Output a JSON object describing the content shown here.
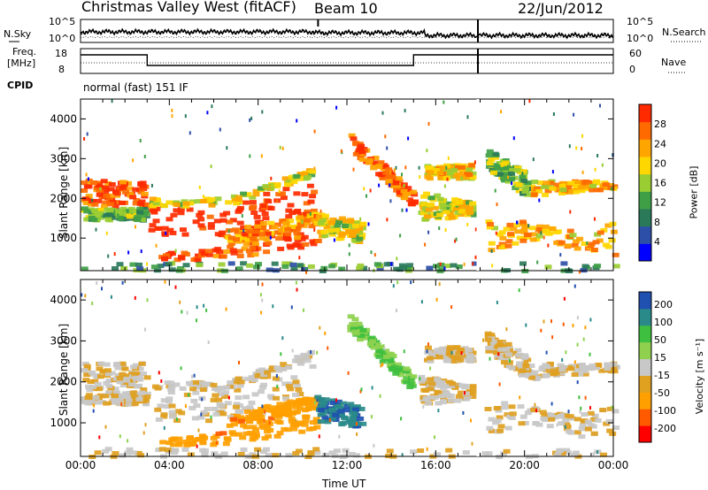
{
  "header": {
    "station": "Christmas Valley West (fitACF)",
    "beam": "Beam 10",
    "date": "22/Jun/2012"
  },
  "top_panels": {
    "nsky_label": "N.Sky",
    "nsky_ticks": [
      "10^5",
      "10^0"
    ],
    "nsearch_label": "N.Search",
    "nsearch_ticks": [
      "10^5",
      "10^0"
    ],
    "freq_label_line1": "Freq.",
    "freq_label_line2": "[MHz]",
    "freq_ticks": [
      "18",
      "8"
    ],
    "nave_label": "Nave",
    "nave_ticks": [
      "60",
      "0"
    ],
    "cpid_label": "CPID",
    "cpid_text": "normal (fast) 151 IF"
  },
  "chart_data": [
    {
      "type": "heatmap",
      "title": "",
      "xlabel": "Time UT",
      "ylabel": "Slant Range [km]",
      "x_ticks": [
        "00:00",
        "04:00",
        "08:00",
        "12:00",
        "16:00",
        "20:00",
        "00:00"
      ],
      "y_ticks": [
        "1000",
        "2000",
        "3000",
        "4000"
      ],
      "xlim": [
        0,
        24
      ],
      "ylim": [
        180,
        4500
      ],
      "colorbar": {
        "label": "Power [dB]",
        "ticks": [
          "4",
          "8",
          "12",
          "16",
          "20",
          "24",
          "28"
        ],
        "range": [
          0,
          32
        ],
        "colors": [
          "#0000ff",
          "#2e4fa8",
          "#2a7a5a",
          "#3f9f47",
          "#9acd32",
          "#ffd700",
          "#ffa500",
          "#ff6a00",
          "#ff2a00"
        ]
      }
    },
    {
      "type": "heatmap",
      "title": "",
      "xlabel": "Time UT",
      "ylabel": "Slant Range [km]",
      "x_ticks": [
        "00:00",
        "04:00",
        "08:00",
        "12:00",
        "16:00",
        "20:00",
        "00:00"
      ],
      "y_ticks": [
        "1000",
        "2000",
        "3000",
        "4000"
      ],
      "xlim": [
        0,
        24
      ],
      "ylim": [
        180,
        4500
      ],
      "colorbar": {
        "label": "Velocity [m s⁻¹]",
        "ticks": [
          "200",
          "100",
          "50",
          "15",
          "-15",
          "-50",
          "-100",
          "-200"
        ],
        "range": [
          -250,
          250
        ],
        "colors": [
          "#ff0000",
          "#ff5a00",
          "#ffa000",
          "#e0a020",
          "#c8c8c8",
          "#8fd14f",
          "#3fbf3f",
          "#2a8a8a",
          "#2050b0"
        ]
      }
    }
  ],
  "x_axis_title": "Time UT"
}
